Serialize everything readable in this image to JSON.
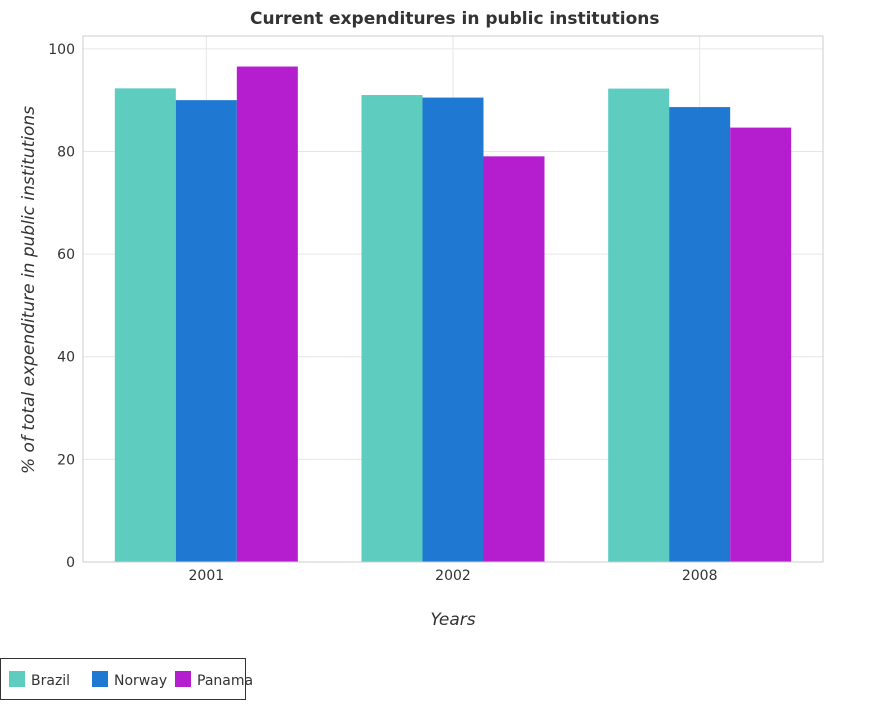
{
  "chart_data": {
    "type": "bar",
    "title": "Current expenditures in public institutions",
    "xlabel": "Years",
    "ylabel": "% of total expenditure in public institutions",
    "categories": [
      "2001",
      "2002",
      "2008"
    ],
    "series": [
      {
        "name": "Brazil",
        "color": "#5ecdbf",
        "values": [
          92.3,
          91.0,
          92.25
        ]
      },
      {
        "name": "Norway",
        "color": "#1f78d1",
        "values": [
          90.0,
          90.5,
          88.65
        ]
      },
      {
        "name": "Panama",
        "color": "#b51ecf",
        "values": [
          96.55,
          79.05,
          84.65
        ]
      }
    ],
    "ylim": [
      0,
      102.5
    ],
    "yticks": [
      0,
      20,
      40,
      60,
      80,
      100
    ],
    "grid": true,
    "legend_position": "bottom-left"
  }
}
